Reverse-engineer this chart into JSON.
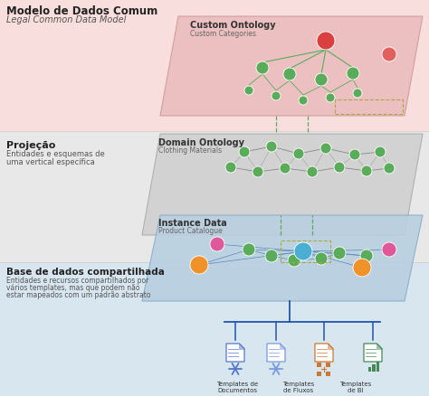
{
  "title_bold": "Modelo de Dados Comum",
  "title_sub": "Legal Common Data Model",
  "section1_bg": "#f9dede",
  "section2_bg": "#e8e8e8",
  "section3_bg": "#d8e6f0",
  "label1_bold": "Projeção",
  "label1_sub1": "Entidades e esquemas de",
  "label1_sub2": "uma vertical específica",
  "label2_bold": "Base de dados compartilhada",
  "label2_sub1": "Entidades e recursos compartilhados por",
  "label2_sub2": "vários templates, mas que podem não",
  "label2_sub3": "estar mapeados com um padrão abstrato",
  "layer1_title": "Custom Ontology",
  "layer1_sub": "Custom Categories",
  "layer2_title": "Domain Ontology",
  "layer2_sub": "Clothing Materials",
  "layer3_title": "Instance Data",
  "layer3_sub": "Product Catalogue",
  "template_labels": [
    "Templates de\nDocumentos",
    "Templates\nde Fluxos",
    "Templates\nde BI"
  ],
  "green": "#5aab5a",
  "dark_green": "#3d8c3d",
  "red": "#d94040",
  "red2": "#e06060",
  "blue_node": "#4bafd4",
  "pink_node": "#e0589a",
  "orange_node": "#f0922a",
  "blue_line": "#2255aa",
  "doc_blue": "#5577cc",
  "doc_blue2": "#7799dd",
  "doc_orange": "#cc7733",
  "doc_green": "#448855",
  "layer1_face": "#ebbcbc",
  "layer1_edge": "#cc9999",
  "layer2_face": "#d0d0d0",
  "layer2_edge": "#aaaaaa",
  "layer3_face": "#b8cfe0",
  "layer3_edge": "#88aacc",
  "connector_green": "#5aab5a",
  "connector_olive": "#aaaa44"
}
